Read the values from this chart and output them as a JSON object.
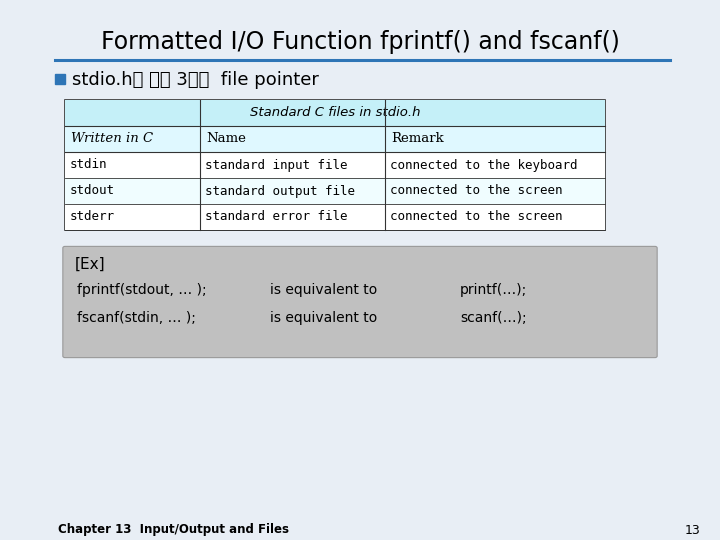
{
  "title": "Formatted I/O Function fprintf() and fscanf()",
  "title_fontsize": 18,
  "title_color": "#000000",
  "slide_bg": "#e8eef5",
  "bullet_text": "stdio.h에 있는 3가지  file pointer",
  "bullet_color": "#2e75b6",
  "table_header_bg": "#c5f0f8",
  "table_header_text": "Standard C files in stdio.h",
  "table_subheader_bg": "#dff8ff",
  "table_col_headers": [
    "Written in C",
    "Name",
    "Remark"
  ],
  "table_rows": [
    [
      "stdin",
      "standard input file",
      "connected to the keyboard"
    ],
    [
      "stdout",
      "standard output file",
      "connected to the screen"
    ],
    [
      "stderr",
      "standard error file",
      "connected to the screen"
    ]
  ],
  "table_row_bgs": [
    "#ffffff",
    "#f0fdff",
    "#ffffff"
  ],
  "code_bg": "#c0c0c0",
  "code_line1": "[Ex]",
  "code_line2a": "fprintf(stdout, … );",
  "code_line2b": "is equivalent to",
  "code_line2c": "printf(…);",
  "code_line3a": "fscanf(stdin, … );",
  "code_line3b": "is equivalent to",
  "code_line3c": "scanf(…);",
  "footer_text": "Chapter 13  Input/Output and Files",
  "page_number": "13",
  "line_color": "#2e75b6"
}
